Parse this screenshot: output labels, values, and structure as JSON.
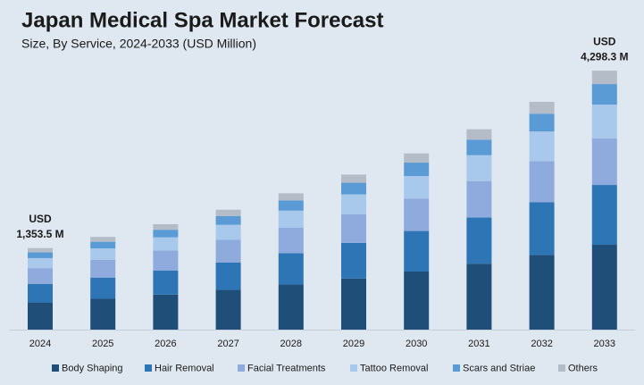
{
  "chart_data": {
    "type": "stacked_bar",
    "title": "Japan Medical Spa Market Forecast",
    "subtitle": "Size, By Service, 2024-2033 (USD Million)",
    "categories": [
      "2024",
      "2025",
      "2026",
      "2027",
      "2028",
      "2029",
      "2030",
      "2031",
      "2032",
      "2033"
    ],
    "series": [
      {
        "name": "Body Shaping",
        "color": "#1f4e79",
        "values": [
          451,
          512,
          581,
          659,
          748,
          849,
          964,
          1094,
          1241,
          1408
        ]
      },
      {
        "name": "Hair Removal",
        "color": "#2e75b6",
        "values": [
          309,
          352,
          401,
          456,
          519,
          591,
          673,
          766,
          872,
          993
        ]
      },
      {
        "name": "Facial Treatments",
        "color": "#8faadc",
        "values": [
          261,
          294,
          332,
          375,
          423,
          477,
          538,
          606,
          684,
          771
        ]
      },
      {
        "name": "Tattoo Removal",
        "color": "#a9c9ec",
        "values": [
          166,
          190,
          218,
          249,
          285,
          327,
          374,
          429,
          491,
          563
        ]
      },
      {
        "name": "Scars and Striae",
        "color": "#5b9bd5",
        "values": [
          95,
          110,
          126,
          146,
          168,
          194,
          223,
          257,
          296,
          341
        ]
      },
      {
        "name": "Others",
        "color": "#b4bcc8",
        "values": [
          71.5,
          81,
          92,
          105,
          119,
          135,
          153,
          174,
          197,
          222.3
        ]
      }
    ],
    "annotations": [
      {
        "category": "2024",
        "lines": [
          "USD",
          "1,353.5 M"
        ],
        "value": 1353.5
      },
      {
        "category": "2033",
        "lines": [
          "USD",
          "4,298.3 M"
        ],
        "value": 4298.3
      }
    ],
    "ylim": [
      0,
      4700
    ],
    "legend": "bottom"
  }
}
